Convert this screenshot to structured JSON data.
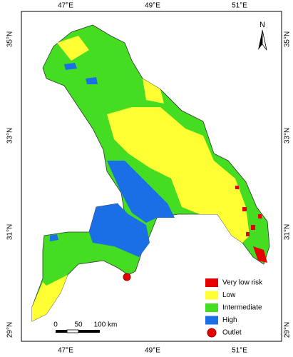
{
  "map": {
    "lon_labels": [
      "47°E",
      "49°E",
      "51°E"
    ],
    "lat_labels": [
      "35°N",
      "33°N",
      "31°N",
      "29°N"
    ],
    "north": "N",
    "legend": [
      {
        "label": "Very low risk",
        "color": "#e60000",
        "shape": "square"
      },
      {
        "label": "Low",
        "color": "#ffff33",
        "shape": "square"
      },
      {
        "label": "Intermediate",
        "color": "#44dd22",
        "shape": "square"
      },
      {
        "label": "High",
        "color": "#1a6fe6",
        "shape": "square"
      },
      {
        "label": "Outlet",
        "color": "#e60000",
        "shape": "circle"
      }
    ],
    "scale_labels": [
      "0",
      "50",
      "100 km"
    ]
  }
}
